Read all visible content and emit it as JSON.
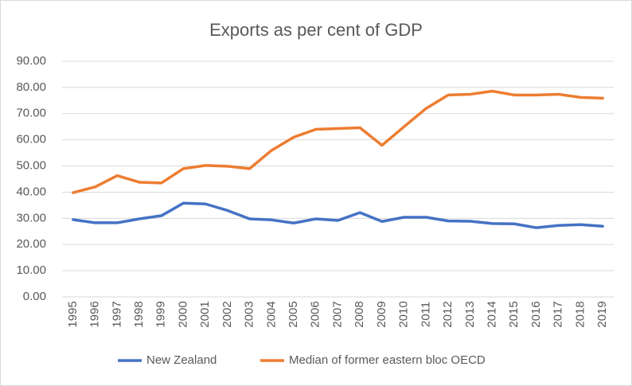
{
  "chart_data": {
    "type": "line",
    "title": "Exports as per cent of GDP",
    "categories": [
      "1995",
      "1996",
      "1997",
      "1998",
      "1999",
      "2000",
      "2001",
      "2002",
      "2003",
      "2004",
      "2005",
      "2006",
      "2007",
      "2008",
      "2009",
      "2010",
      "2011",
      "2012",
      "2013",
      "2014",
      "2015",
      "2016",
      "2017",
      "2018",
      "2019"
    ],
    "series": [
      {
        "name": "New Zealand",
        "color": "#4472c4",
        "values": [
          29.5,
          28.3,
          28.3,
          29.8,
          31,
          35.8,
          35.5,
          33,
          29.8,
          29.4,
          28.2,
          29.8,
          29.2,
          32.2,
          28.8,
          30.4,
          30.4,
          29,
          28.9,
          28,
          27.9,
          26.4,
          27.3,
          27.6,
          27
        ]
      },
      {
        "name": "Median of former eastern bloc OECD",
        "color": "#ed7d31",
        "values": [
          39.8,
          42,
          46.3,
          43.8,
          43.5,
          49,
          50.2,
          49.9,
          49,
          56,
          61,
          64,
          64.3,
          64.6,
          57.9,
          65,
          72,
          77.1,
          77.4,
          78.6,
          77.1,
          77.1,
          77.4,
          76.2,
          75.9
        ]
      }
    ],
    "ylim": [
      0,
      90
    ],
    "yticks": [
      {
        "value": 0,
        "label": "0.00"
      },
      {
        "value": 10,
        "label": "10.00"
      },
      {
        "value": 20,
        "label": "20.00"
      },
      {
        "value": 30,
        "label": "30.00"
      },
      {
        "value": 40,
        "label": "40.00"
      },
      {
        "value": 50,
        "label": "50.00"
      },
      {
        "value": 60,
        "label": "60.00"
      },
      {
        "value": 70,
        "label": "70.00"
      },
      {
        "value": 80,
        "label": "80.00"
      },
      {
        "value": 90,
        "label": "90.00"
      }
    ],
    "grid": true,
    "legend": "bottom"
  }
}
